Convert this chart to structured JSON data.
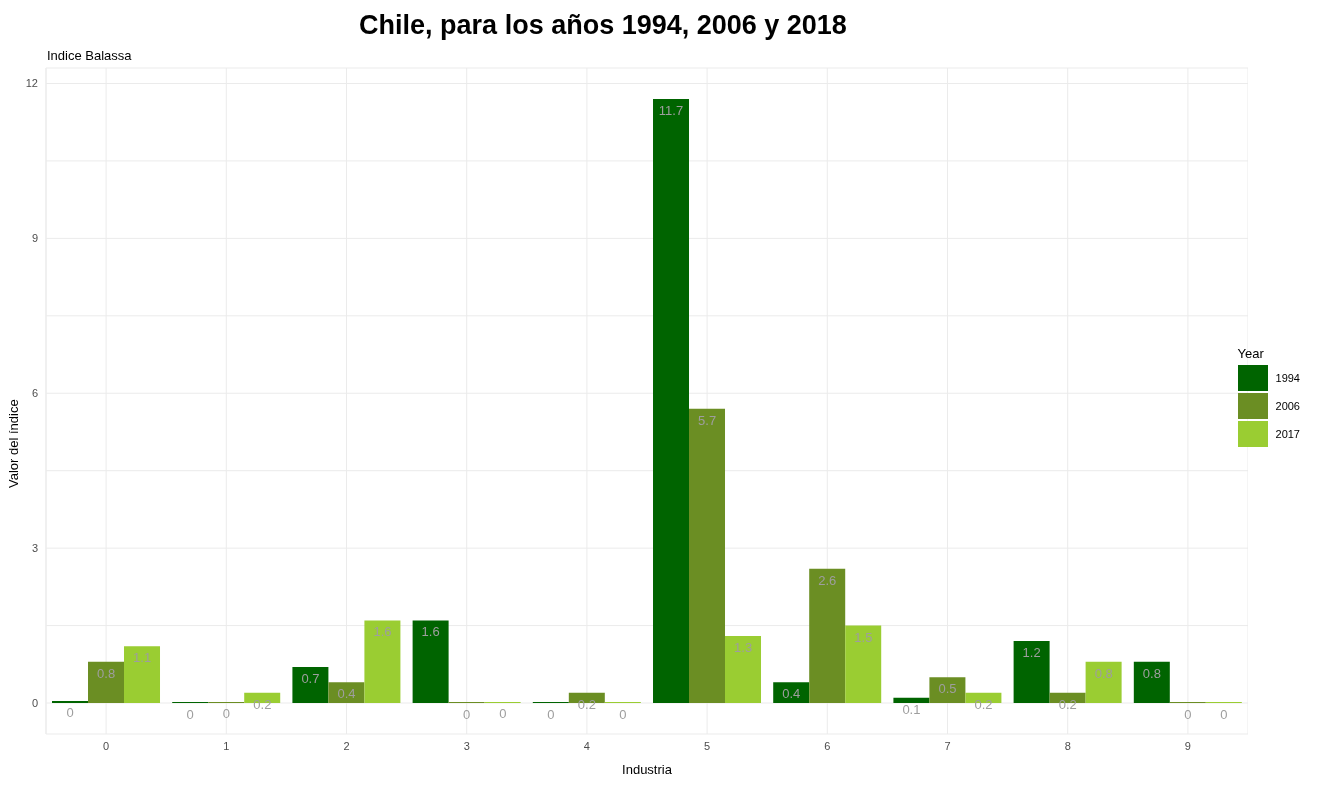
{
  "chart_data": {
    "type": "bar",
    "title": "Chile, para los años 1994, 2006 y 2018",
    "subtitle": "Indice Balassa",
    "xlabel": "Industria",
    "ylabel": "Valor del índice",
    "legend_title": "Year",
    "categories": [
      "0",
      "1",
      "2",
      "3",
      "4",
      "5",
      "6",
      "7",
      "8",
      "9"
    ],
    "series": [
      {
        "name": "1994",
        "color": "#006400",
        "values": [
          0.04,
          0,
          0.7,
          1.6,
          0,
          11.7,
          0.4,
          0.1,
          1.2,
          0.8
        ],
        "value_labels": [
          "0",
          "0",
          "0.7",
          "1.6",
          "0",
          "11.7",
          "0.4",
          "0.1",
          "1.2",
          "0.8"
        ]
      },
      {
        "name": "2006",
        "color": "#6b8e23",
        "values": [
          0.8,
          0.02,
          0.4,
          0,
          0.2,
          5.7,
          2.6,
          0.5,
          0.2,
          0
        ],
        "value_labels": [
          "0.8",
          "0",
          "0.4",
          "0",
          "0.2",
          "5.7",
          "2.6",
          "0.5",
          "0.2",
          "0"
        ]
      },
      {
        "name": "2017",
        "color": "#9acd32",
        "values": [
          1.1,
          0.2,
          1.6,
          0.02,
          0,
          1.3,
          1.5,
          0.2,
          0.8,
          0
        ],
        "value_labels": [
          "1.1",
          "0.2",
          "1.6",
          "0",
          "0",
          "1.3",
          "1.5",
          "0.2",
          "0.8",
          "0"
        ]
      }
    ],
    "ylim": [
      -0.6,
      12.3
    ],
    "yticks": [
      0,
      {
        "value": 1.5,
        "label": null
      },
      3,
      {
        "value": 4.5,
        "label": null
      },
      6,
      {
        "value": 7.5,
        "label": null
      },
      9,
      {
        "value": 10.5,
        "label": null
      },
      12
    ],
    "grid": true,
    "legend": "right"
  }
}
